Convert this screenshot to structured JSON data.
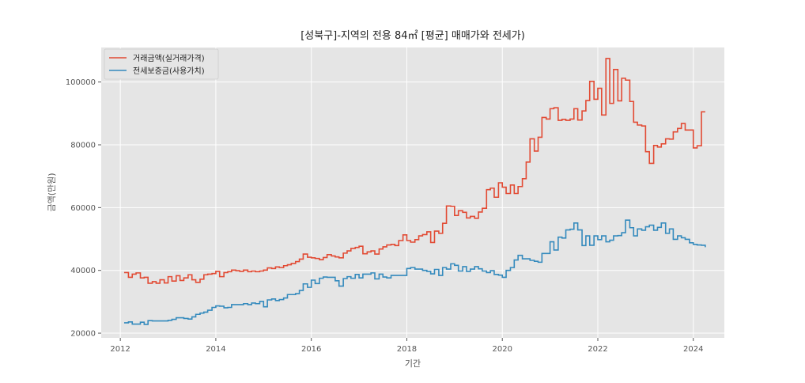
{
  "chart_data": {
    "type": "line",
    "title": "[성북구]-지역의 전용 84㎡ [평균] 매매가와 전세가)",
    "xlabel": "기간",
    "ylabel": "금액(만원)",
    "xlim": [
      2011.6,
      2024.65
    ],
    "ylim": [
      18500,
      111000
    ],
    "x_ticks": [
      2012,
      2014,
      2016,
      2018,
      2020,
      2022,
      2024
    ],
    "y_ticks": [
      20000,
      40000,
      60000,
      80000,
      100000
    ],
    "y_tick_labels": [
      "20000",
      "40000",
      "60000",
      "80000",
      "100000"
    ],
    "grid": true,
    "legend_position": "upper-left",
    "step": true,
    "series": [
      {
        "name": "거래금액(실거래가격)",
        "color": "#e24a33",
        "points": [
          [
            2012.08,
            39300
          ],
          [
            2012.17,
            37800
          ],
          [
            2012.25,
            38800
          ],
          [
            2012.33,
            39200
          ],
          [
            2012.42,
            37600
          ],
          [
            2012.5,
            37800
          ],
          [
            2012.58,
            35900
          ],
          [
            2012.67,
            36400
          ],
          [
            2012.75,
            35900
          ],
          [
            2012.83,
            37000
          ],
          [
            2012.92,
            36000
          ],
          [
            2013.0,
            38000
          ],
          [
            2013.08,
            36600
          ],
          [
            2013.17,
            38300
          ],
          [
            2013.25,
            36800
          ],
          [
            2013.33,
            37600
          ],
          [
            2013.42,
            38600
          ],
          [
            2013.5,
            37000
          ],
          [
            2013.58,
            36200
          ],
          [
            2013.67,
            37200
          ],
          [
            2013.75,
            38600
          ],
          [
            2013.83,
            38800
          ],
          [
            2013.92,
            39000
          ],
          [
            2014.0,
            39700
          ],
          [
            2014.08,
            38000
          ],
          [
            2014.17,
            39300
          ],
          [
            2014.25,
            39600
          ],
          [
            2014.33,
            40100
          ],
          [
            2014.42,
            39900
          ],
          [
            2014.5,
            39700
          ],
          [
            2014.58,
            40100
          ],
          [
            2014.67,
            39600
          ],
          [
            2014.75,
            39800
          ],
          [
            2014.83,
            39600
          ],
          [
            2014.92,
            39800
          ],
          [
            2015.0,
            40100
          ],
          [
            2015.08,
            40800
          ],
          [
            2015.17,
            40600
          ],
          [
            2015.25,
            41100
          ],
          [
            2015.33,
            40900
          ],
          [
            2015.42,
            41500
          ],
          [
            2015.5,
            41800
          ],
          [
            2015.58,
            42200
          ],
          [
            2015.67,
            42800
          ],
          [
            2015.75,
            43600
          ],
          [
            2015.83,
            45200
          ],
          [
            2015.92,
            44200
          ],
          [
            2016.0,
            44000
          ],
          [
            2016.08,
            43800
          ],
          [
            2016.17,
            43400
          ],
          [
            2016.25,
            44100
          ],
          [
            2016.33,
            45000
          ],
          [
            2016.42,
            44600
          ],
          [
            2016.5,
            44300
          ],
          [
            2016.58,
            44000
          ],
          [
            2016.67,
            45500
          ],
          [
            2016.75,
            46200
          ],
          [
            2016.83,
            47000
          ],
          [
            2016.92,
            47300
          ],
          [
            2017.0,
            47700
          ],
          [
            2017.08,
            45300
          ],
          [
            2017.17,
            45900
          ],
          [
            2017.25,
            46200
          ],
          [
            2017.33,
            45200
          ],
          [
            2017.42,
            46800
          ],
          [
            2017.5,
            47500
          ],
          [
            2017.58,
            48100
          ],
          [
            2017.67,
            48300
          ],
          [
            2017.75,
            47900
          ],
          [
            2017.83,
            49500
          ],
          [
            2017.92,
            51300
          ],
          [
            2018.0,
            49500
          ],
          [
            2018.08,
            49000
          ],
          [
            2018.17,
            49800
          ],
          [
            2018.25,
            51000
          ],
          [
            2018.33,
            51400
          ],
          [
            2018.42,
            52300
          ],
          [
            2018.5,
            48900
          ],
          [
            2018.58,
            52500
          ],
          [
            2018.67,
            51800
          ],
          [
            2018.75,
            55000
          ],
          [
            2018.83,
            60500
          ],
          [
            2018.92,
            60400
          ],
          [
            2019.0,
            57500
          ],
          [
            2019.08,
            59000
          ],
          [
            2019.17,
            58500
          ],
          [
            2019.25,
            56700
          ],
          [
            2019.33,
            57200
          ],
          [
            2019.42,
            56600
          ],
          [
            2019.5,
            58600
          ],
          [
            2019.58,
            59800
          ],
          [
            2019.67,
            65700
          ],
          [
            2019.75,
            66200
          ],
          [
            2019.83,
            63300
          ],
          [
            2019.92,
            67900
          ],
          [
            2020.0,
            66500
          ],
          [
            2020.08,
            64500
          ],
          [
            2020.17,
            67200
          ],
          [
            2020.25,
            64500
          ],
          [
            2020.33,
            66700
          ],
          [
            2020.42,
            69200
          ],
          [
            2020.5,
            74500
          ],
          [
            2020.58,
            81900
          ],
          [
            2020.67,
            78000
          ],
          [
            2020.75,
            82400
          ],
          [
            2020.83,
            88700
          ],
          [
            2020.92,
            88200
          ],
          [
            2021.0,
            91500
          ],
          [
            2021.08,
            91800
          ],
          [
            2021.17,
            87800
          ],
          [
            2021.25,
            88100
          ],
          [
            2021.33,
            87800
          ],
          [
            2021.42,
            88200
          ],
          [
            2021.5,
            91500
          ],
          [
            2021.58,
            87900
          ],
          [
            2021.67,
            90800
          ],
          [
            2021.75,
            94100
          ],
          [
            2021.83,
            100200
          ],
          [
            2021.92,
            94500
          ],
          [
            2022.0,
            98000
          ],
          [
            2022.08,
            89500
          ],
          [
            2022.17,
            107500
          ],
          [
            2022.25,
            93200
          ],
          [
            2022.33,
            104000
          ],
          [
            2022.42,
            94000
          ],
          [
            2022.5,
            101200
          ],
          [
            2022.58,
            100600
          ],
          [
            2022.67,
            93800
          ],
          [
            2022.75,
            87200
          ],
          [
            2022.83,
            86300
          ],
          [
            2022.92,
            86000
          ],
          [
            2023.0,
            77800
          ],
          [
            2023.08,
            74100
          ],
          [
            2023.17,
            79800
          ],
          [
            2023.25,
            79300
          ],
          [
            2023.33,
            80300
          ],
          [
            2023.42,
            81900
          ],
          [
            2023.5,
            81800
          ],
          [
            2023.58,
            84100
          ],
          [
            2023.67,
            85200
          ],
          [
            2023.75,
            86800
          ],
          [
            2023.83,
            84700
          ],
          [
            2023.92,
            84700
          ],
          [
            2024.0,
            79000
          ],
          [
            2024.08,
            79700
          ],
          [
            2024.17,
            90500
          ],
          [
            2024.25,
            90500
          ]
        ]
      },
      {
        "name": "전세보증금(사용가치)",
        "color": "#348abd",
        "points": [
          [
            2012.08,
            23300
          ],
          [
            2012.17,
            23600
          ],
          [
            2012.25,
            22900
          ],
          [
            2012.33,
            22900
          ],
          [
            2012.42,
            23500
          ],
          [
            2012.5,
            22800
          ],
          [
            2012.58,
            24000
          ],
          [
            2012.67,
            23900
          ],
          [
            2012.75,
            23900
          ],
          [
            2012.83,
            23900
          ],
          [
            2012.92,
            23900
          ],
          [
            2013.0,
            24100
          ],
          [
            2013.08,
            24400
          ],
          [
            2013.17,
            24900
          ],
          [
            2013.25,
            24900
          ],
          [
            2013.33,
            24700
          ],
          [
            2013.42,
            24500
          ],
          [
            2013.5,
            25200
          ],
          [
            2013.58,
            26000
          ],
          [
            2013.67,
            26400
          ],
          [
            2013.75,
            26700
          ],
          [
            2013.83,
            27300
          ],
          [
            2013.92,
            28200
          ],
          [
            2014.0,
            28700
          ],
          [
            2014.08,
            28600
          ],
          [
            2014.17,
            28100
          ],
          [
            2014.25,
            28200
          ],
          [
            2014.33,
            29100
          ],
          [
            2014.42,
            29100
          ],
          [
            2014.5,
            29100
          ],
          [
            2014.58,
            29400
          ],
          [
            2014.67,
            29100
          ],
          [
            2014.75,
            29600
          ],
          [
            2014.83,
            29400
          ],
          [
            2014.92,
            30100
          ],
          [
            2015.0,
            28400
          ],
          [
            2015.08,
            30600
          ],
          [
            2015.17,
            30900
          ],
          [
            2015.25,
            30400
          ],
          [
            2015.33,
            30700
          ],
          [
            2015.42,
            31200
          ],
          [
            2015.5,
            32300
          ],
          [
            2015.58,
            32300
          ],
          [
            2015.67,
            32600
          ],
          [
            2015.75,
            33600
          ],
          [
            2015.83,
            35700
          ],
          [
            2015.92,
            34600
          ],
          [
            2016.0,
            36900
          ],
          [
            2016.08,
            35800
          ],
          [
            2016.17,
            37500
          ],
          [
            2016.25,
            37900
          ],
          [
            2016.33,
            37800
          ],
          [
            2016.42,
            37800
          ],
          [
            2016.5,
            36700
          ],
          [
            2016.58,
            35000
          ],
          [
            2016.67,
            37400
          ],
          [
            2016.75,
            38000
          ],
          [
            2016.83,
            37500
          ],
          [
            2016.92,
            38700
          ],
          [
            2017.0,
            37600
          ],
          [
            2017.08,
            38800
          ],
          [
            2017.17,
            38800
          ],
          [
            2017.25,
            39200
          ],
          [
            2017.33,
            37300
          ],
          [
            2017.42,
            38800
          ],
          [
            2017.5,
            37900
          ],
          [
            2017.58,
            37600
          ],
          [
            2017.67,
            38400
          ],
          [
            2017.75,
            38400
          ],
          [
            2017.83,
            38400
          ],
          [
            2017.92,
            38400
          ],
          [
            2018.0,
            40600
          ],
          [
            2018.08,
            40900
          ],
          [
            2018.17,
            40400
          ],
          [
            2018.25,
            40400
          ],
          [
            2018.33,
            40000
          ],
          [
            2018.42,
            39700
          ],
          [
            2018.5,
            38900
          ],
          [
            2018.58,
            40300
          ],
          [
            2018.67,
            38400
          ],
          [
            2018.75,
            40900
          ],
          [
            2018.83,
            40400
          ],
          [
            2018.92,
            42100
          ],
          [
            2019.0,
            41600
          ],
          [
            2019.08,
            39800
          ],
          [
            2019.17,
            41200
          ],
          [
            2019.25,
            39700
          ],
          [
            2019.33,
            40400
          ],
          [
            2019.42,
            41200
          ],
          [
            2019.5,
            40500
          ],
          [
            2019.58,
            39800
          ],
          [
            2019.67,
            39300
          ],
          [
            2019.75,
            39900
          ],
          [
            2019.83,
            38700
          ],
          [
            2019.92,
            38500
          ],
          [
            2020.0,
            37800
          ],
          [
            2020.08,
            40000
          ],
          [
            2020.17,
            40900
          ],
          [
            2020.25,
            43300
          ],
          [
            2020.33,
            44800
          ],
          [
            2020.42,
            43700
          ],
          [
            2020.5,
            43700
          ],
          [
            2020.58,
            43200
          ],
          [
            2020.67,
            42900
          ],
          [
            2020.75,
            42600
          ],
          [
            2020.83,
            45400
          ],
          [
            2020.92,
            45400
          ],
          [
            2021.0,
            49100
          ],
          [
            2021.08,
            46500
          ],
          [
            2021.17,
            50600
          ],
          [
            2021.25,
            50300
          ],
          [
            2021.33,
            52900
          ],
          [
            2021.42,
            53100
          ],
          [
            2021.5,
            55100
          ],
          [
            2021.58,
            52900
          ],
          [
            2021.67,
            47900
          ],
          [
            2021.75,
            51000
          ],
          [
            2021.83,
            48000
          ],
          [
            2021.92,
            51000
          ],
          [
            2022.0,
            49800
          ],
          [
            2022.08,
            51000
          ],
          [
            2022.17,
            49100
          ],
          [
            2022.25,
            49600
          ],
          [
            2022.33,
            51000
          ],
          [
            2022.42,
            51100
          ],
          [
            2022.5,
            52000
          ],
          [
            2022.58,
            56000
          ],
          [
            2022.67,
            53600
          ],
          [
            2022.75,
            51000
          ],
          [
            2022.83,
            53200
          ],
          [
            2022.92,
            52800
          ],
          [
            2023.0,
            53900
          ],
          [
            2023.08,
            54400
          ],
          [
            2023.17,
            52800
          ],
          [
            2023.25,
            53700
          ],
          [
            2023.33,
            55100
          ],
          [
            2023.42,
            51800
          ],
          [
            2023.5,
            53200
          ],
          [
            2023.58,
            49900
          ],
          [
            2023.67,
            51000
          ],
          [
            2023.75,
            50400
          ],
          [
            2023.83,
            49900
          ],
          [
            2023.92,
            48800
          ],
          [
            2024.0,
            48300
          ],
          [
            2024.08,
            48100
          ],
          [
            2024.17,
            48000
          ],
          [
            2024.25,
            47400
          ]
        ]
      }
    ]
  }
}
